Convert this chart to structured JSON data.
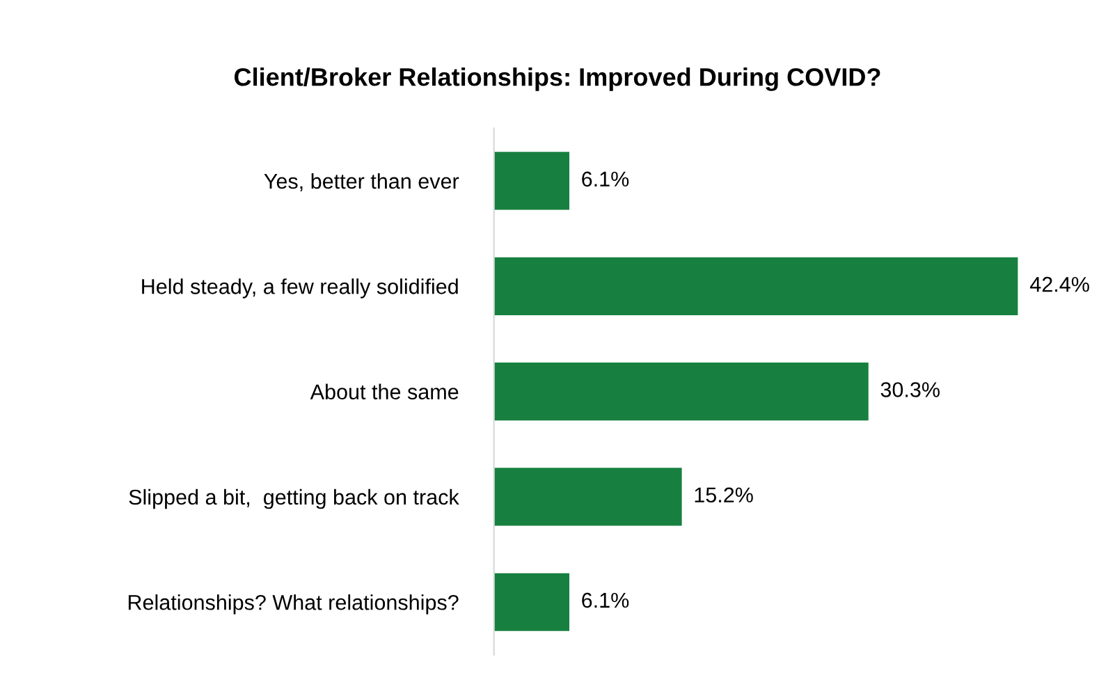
{
  "chart_data": {
    "type": "bar",
    "orientation": "horizontal",
    "title": "Client/Broker Relationships: Improved During COVID?",
    "categories": [
      "Yes, better than ever",
      "Held steady, a few really solidified",
      "About the same",
      "Slipped a bit,  getting back on track",
      "Relationships? What relationships?"
    ],
    "values": [
      6.1,
      42.4,
      30.3,
      15.2,
      6.1
    ],
    "value_labels": [
      "6.1%",
      "42.4%",
      "30.3%",
      "15.2%",
      "6.1%"
    ],
    "color": "#178040",
    "grid": false,
    "legend": false
  }
}
